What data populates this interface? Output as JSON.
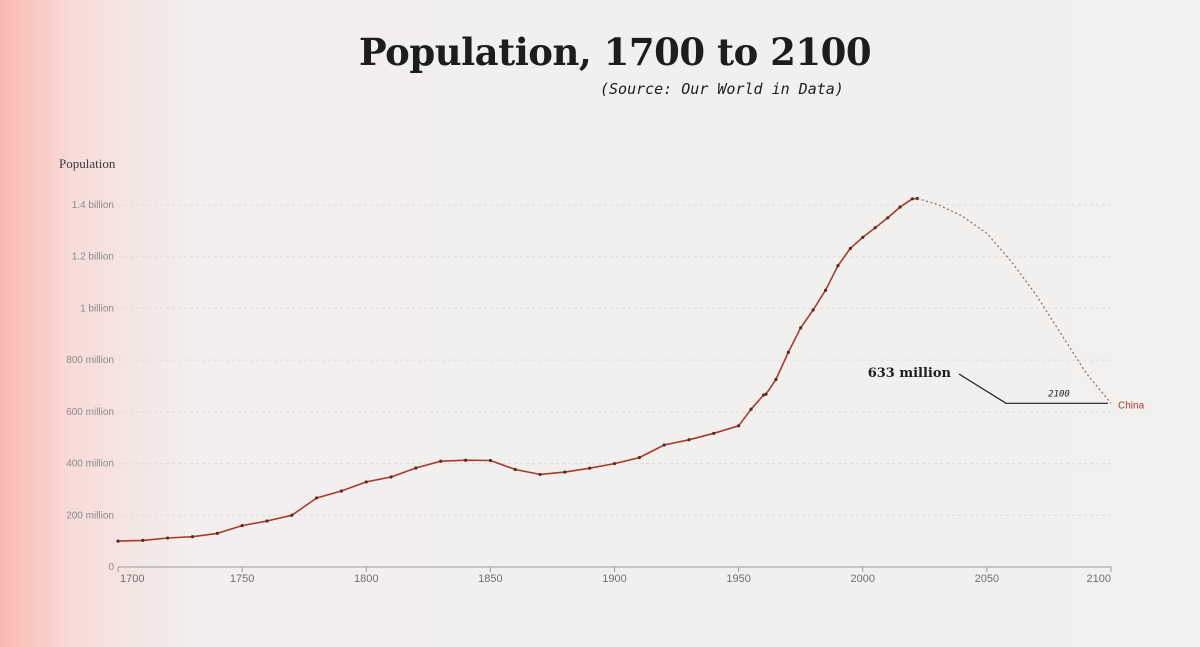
{
  "chart_data": {
    "type": "line",
    "title": "Population, 1700 to 2100",
    "subtitle": "(Source: Our World in Data)",
    "ylabel": "Population",
    "xlabel": "",
    "xlim": [
      1700,
      2100
    ],
    "ylim": [
      0,
      1400000000
    ],
    "x_ticks": [
      "1700",
      "1750",
      "1800",
      "1850",
      "1900",
      "1950",
      "2000",
      "2050",
      "2100"
    ],
    "x_tick_values": [
      1700,
      1750,
      1800,
      1850,
      1900,
      1950,
      2000,
      2050,
      2100
    ],
    "y_ticks": [
      "0",
      "200 million",
      "400 million",
      "600 million",
      "800 million",
      "1 billion",
      "1.2 billion",
      "1.4 billion"
    ],
    "y_tick_values": [
      0,
      200000000,
      400000000,
      600000000,
      800000000,
      1000000000,
      1200000000,
      1400000000
    ],
    "grid": true,
    "series": [
      {
        "name": "China",
        "color": "#a83a2c",
        "historical": {
          "x": [
            1700,
            1710,
            1720,
            1730,
            1740,
            1750,
            1760,
            1770,
            1780,
            1790,
            1800,
            1810,
            1820,
            1830,
            1840,
            1850,
            1860,
            1870,
            1880,
            1890,
            1900,
            1910,
            1920,
            1930,
            1940,
            1950,
            1955,
            1960,
            1961,
            1965,
            1970,
            1975,
            1980,
            1985,
            1990,
            1995,
            2000,
            2005,
            2010,
            2015,
            2020,
            2022
          ],
          "y": [
            100000000,
            103000000,
            112000000,
            117000000,
            130000000,
            160000000,
            178000000,
            200000000,
            267000000,
            294000000,
            329000000,
            348000000,
            383000000,
            409000000,
            413000000,
            412000000,
            377000000,
            358000000,
            367000000,
            382000000,
            400000000,
            423000000,
            472000000,
            492000000,
            517000000,
            546000000,
            610000000,
            665000000,
            668000000,
            725000000,
            830000000,
            925000000,
            994000000,
            1070000000,
            1165000000,
            1232000000,
            1275000000,
            1312000000,
            1350000000,
            1392000000,
            1424000000,
            1425000000
          ]
        },
        "projection": {
          "x": [
            2022,
            2030,
            2040,
            2050,
            2060,
            2070,
            2080,
            2090,
            2100
          ],
          "y": [
            1425000000,
            1403000000,
            1358000000,
            1290000000,
            1180000000,
            1050000000,
            900000000,
            750000000,
            633000000
          ]
        },
        "label": "China"
      }
    ],
    "annotations": [
      {
        "text": "633 million",
        "note": "2100"
      }
    ]
  }
}
